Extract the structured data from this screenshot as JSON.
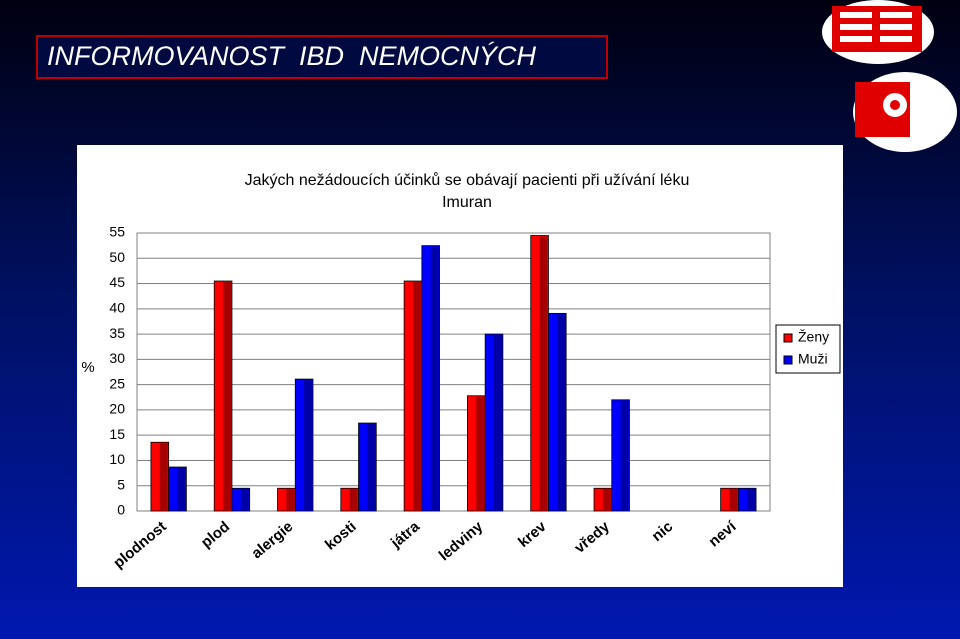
{
  "slide_title": "INFORMOVANOST  IBD  NEMOCNÝCH",
  "chart_data": {
    "type": "bar",
    "title": [
      "Jakých nežádoucích účinků se obávají pacienti při užívání léku",
      "Imuran"
    ],
    "ylabel": "%",
    "categories": [
      "plodnost",
      "plod",
      "alergie",
      "kosti",
      "játra",
      "ledviny",
      "krev",
      "vředy",
      "nic",
      "neví"
    ],
    "series": [
      {
        "name": "Ženy",
        "color": "#ff0000",
        "values": [
          13.6,
          45.5,
          4.5,
          4.5,
          45.5,
          22.8,
          54.5,
          4.5,
          0,
          4.5
        ]
      },
      {
        "name": "Muži",
        "color": "#0000ff",
        "values": [
          8.7,
          4.5,
          26.1,
          17.4,
          52.5,
          35.0,
          39.1,
          22.0,
          0,
          4.5
        ]
      }
    ],
    "ylim": [
      0,
      55
    ],
    "yticks": [
      0,
      5,
      10,
      15,
      20,
      25,
      30,
      35,
      40,
      45,
      50,
      55
    ],
    "grid": true,
    "legend": "right"
  }
}
